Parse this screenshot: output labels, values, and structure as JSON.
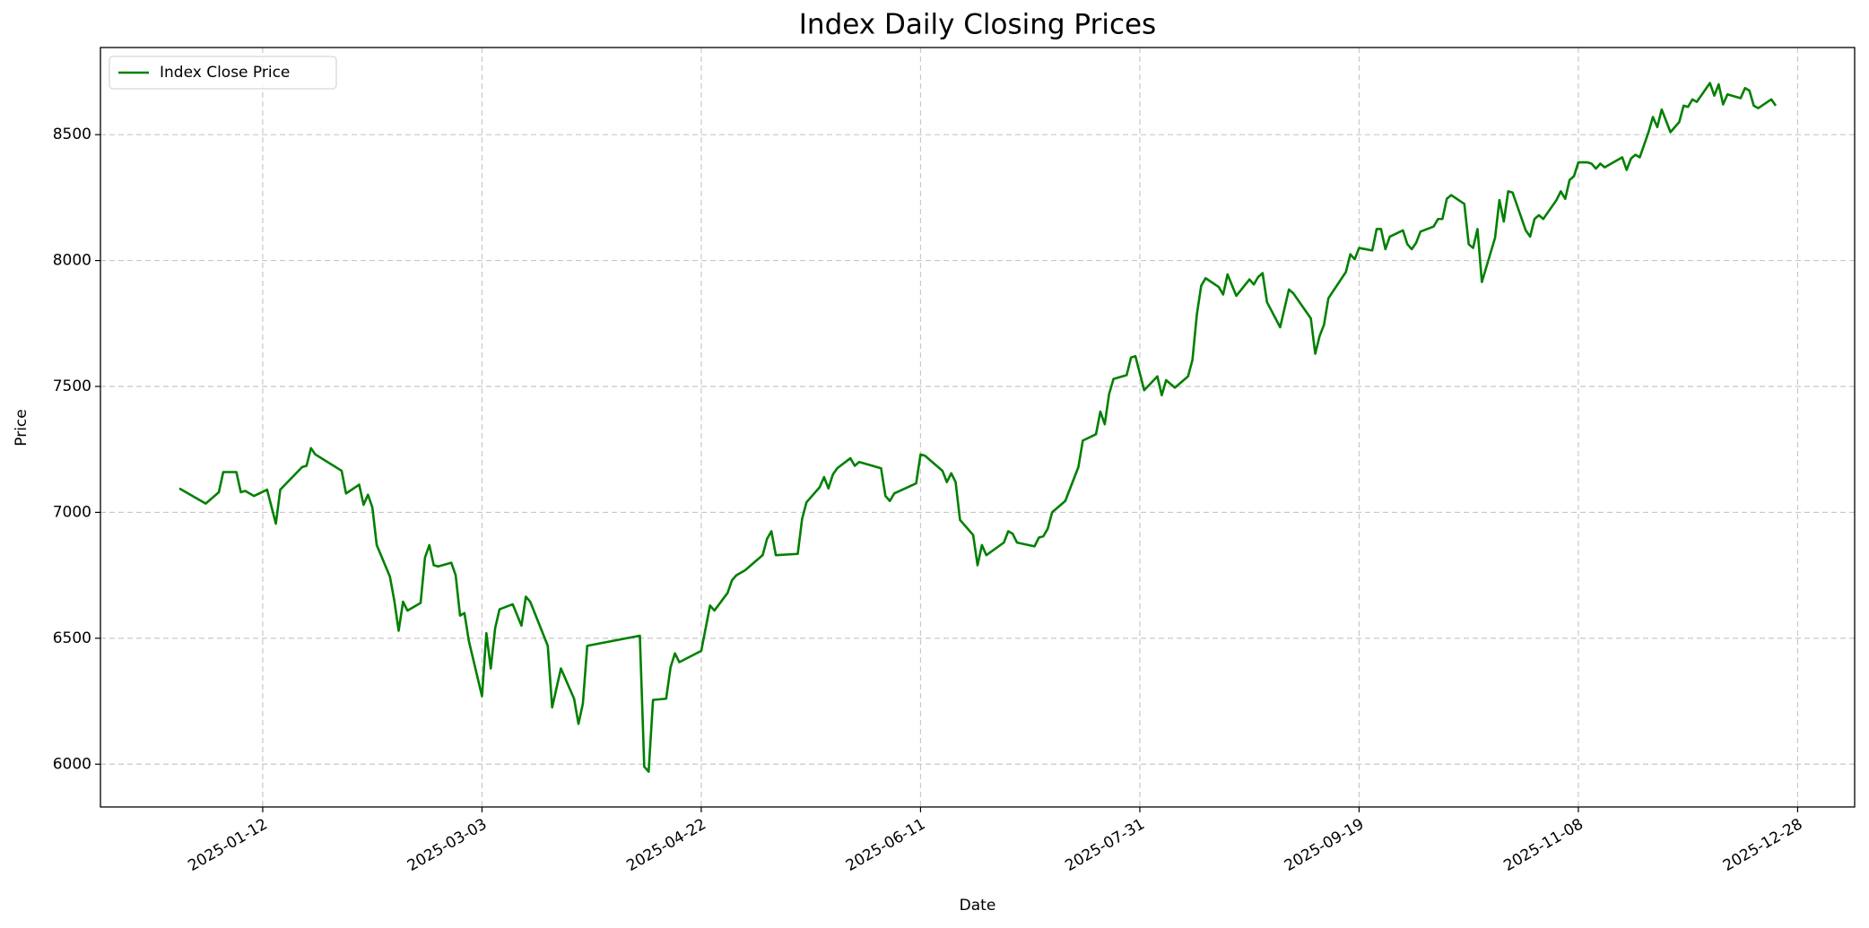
{
  "chart_data": {
    "type": "line",
    "title": "Index Daily Closing Prices",
    "x_label": "Date",
    "y_label": "Price",
    "x": [
      "2024-12-24",
      "2024-12-30",
      "2025-01-02",
      "2025-01-03",
      "2025-01-06",
      "2025-01-07",
      "2025-01-08",
      "2025-01-10",
      "2025-01-13",
      "2025-01-15",
      "2025-01-16",
      "2025-01-21",
      "2025-01-22",
      "2025-01-23",
      "2025-01-24",
      "2025-01-30",
      "2025-01-31",
      "2025-02-03",
      "2025-02-04",
      "2025-02-05",
      "2025-02-06",
      "2025-02-07",
      "2025-02-10",
      "2025-02-11",
      "2025-02-12",
      "2025-02-13",
      "2025-02-14",
      "2025-02-17",
      "2025-02-18",
      "2025-02-19",
      "2025-02-20",
      "2025-02-21",
      "2025-02-24",
      "2025-02-25",
      "2025-02-26",
      "2025-02-27",
      "2025-02-28",
      "2025-03-03",
      "2025-03-04",
      "2025-03-05",
      "2025-03-06",
      "2025-03-07",
      "2025-03-10",
      "2025-03-12",
      "2025-03-13",
      "2025-03-14",
      "2025-03-18",
      "2025-03-19",
      "2025-03-21",
      "2025-03-24",
      "2025-03-25",
      "2025-03-26",
      "2025-03-27",
      "2025-04-08",
      "2025-04-09",
      "2025-04-10",
      "2025-04-11",
      "2025-04-14",
      "2025-04-15",
      "2025-04-16",
      "2025-04-17",
      "2025-04-22",
      "2025-04-24",
      "2025-04-25",
      "2025-04-28",
      "2025-04-29",
      "2025-04-30",
      "2025-05-02",
      "2025-05-06",
      "2025-05-07",
      "2025-05-08",
      "2025-05-09",
      "2025-05-14",
      "2025-05-15",
      "2025-05-16",
      "2025-05-19",
      "2025-05-20",
      "2025-05-21",
      "2025-05-22",
      "2025-05-23",
      "2025-05-26",
      "2025-05-27",
      "2025-05-28",
      "2025-06-02",
      "2025-06-03",
      "2025-06-04",
      "2025-06-05",
      "2025-06-10",
      "2025-06-11",
      "2025-06-12",
      "2025-06-16",
      "2025-06-17",
      "2025-06-18",
      "2025-06-19",
      "2025-06-20",
      "2025-06-23",
      "2025-06-24",
      "2025-06-25",
      "2025-06-26",
      "2025-06-30",
      "2025-07-01",
      "2025-07-02",
      "2025-07-03",
      "2025-07-07",
      "2025-07-08",
      "2025-07-09",
      "2025-07-10",
      "2025-07-11",
      "2025-07-14",
      "2025-07-17",
      "2025-07-18",
      "2025-07-21",
      "2025-07-22",
      "2025-07-23",
      "2025-07-24",
      "2025-07-25",
      "2025-07-28",
      "2025-07-29",
      "2025-07-30",
      "2025-08-01",
      "2025-08-04",
      "2025-08-05",
      "2025-08-06",
      "2025-08-08",
      "2025-08-11",
      "2025-08-12",
      "2025-08-13",
      "2025-08-14",
      "2025-08-15",
      "2025-08-18",
      "2025-08-19",
      "2025-08-20",
      "2025-08-22",
      "2025-08-25",
      "2025-08-26",
      "2025-08-27",
      "2025-08-28",
      "2025-08-29",
      "2025-09-01",
      "2025-09-03",
      "2025-09-04",
      "2025-09-08",
      "2025-09-09",
      "2025-09-10",
      "2025-09-11",
      "2025-09-12",
      "2025-09-16",
      "2025-09-17",
      "2025-09-18",
      "2025-09-19",
      "2025-09-22",
      "2025-09-23",
      "2025-09-24",
      "2025-09-25",
      "2025-09-26",
      "2025-09-29",
      "2025-09-30",
      "2025-10-01",
      "2025-10-02",
      "2025-10-03",
      "2025-10-06",
      "2025-10-07",
      "2025-10-08",
      "2025-10-09",
      "2025-10-10",
      "2025-10-13",
      "2025-10-14",
      "2025-10-15",
      "2025-10-16",
      "2025-10-17",
      "2025-10-20",
      "2025-10-21",
      "2025-10-22",
      "2025-10-23",
      "2025-10-24",
      "2025-10-27",
      "2025-10-28",
      "2025-10-29",
      "2025-10-30",
      "2025-10-31",
      "2025-11-03",
      "2025-11-04",
      "2025-11-05",
      "2025-11-06",
      "2025-11-07",
      "2025-11-08",
      "2025-11-10",
      "2025-11-11",
      "2025-11-12",
      "2025-11-13",
      "2025-11-14",
      "2025-11-17",
      "2025-11-18",
      "2025-11-19",
      "2025-11-20",
      "2025-11-21",
      "2025-11-22",
      "2025-11-24",
      "2025-11-25",
      "2025-11-26",
      "2025-11-27",
      "2025-11-29",
      "2025-12-01",
      "2025-12-02",
      "2025-12-03",
      "2025-12-04",
      "2025-12-05",
      "2025-12-08",
      "2025-12-09",
      "2025-12-10",
      "2025-12-11",
      "2025-12-12",
      "2025-12-15",
      "2025-12-16",
      "2025-12-17",
      "2025-12-18",
      "2025-12-19",
      "2025-12-22",
      "2025-12-23"
    ],
    "series": [
      {
        "name": "Index Close Price",
        "color": "#008000",
        "values": [
          7095,
          7035,
          7080,
          7160,
          7160,
          7080,
          7085,
          7065,
          7090,
          6955,
          7090,
          7180,
          7185,
          7255,
          7230,
          7165,
          7075,
          7110,
          7030,
          7070,
          7020,
          6870,
          6745,
          6650,
          6530,
          6645,
          6610,
          6640,
          6820,
          6870,
          6790,
          6785,
          6800,
          6750,
          6590,
          6600,
          6490,
          6270,
          6520,
          6380,
          6540,
          6615,
          6635,
          6550,
          6665,
          6645,
          6470,
          6225,
          6380,
          6260,
          6160,
          6240,
          6470,
          6510,
          5990,
          5970,
          6255,
          6260,
          6385,
          6440,
          6405,
          6450,
          6630,
          6610,
          6680,
          6730,
          6750,
          6770,
          6830,
          6895,
          6925,
          6830,
          6835,
          6975,
          7040,
          7100,
          7140,
          7095,
          7150,
          7175,
          7215,
          7185,
          7200,
          7175,
          7065,
          7045,
          7075,
          7115,
          7230,
          7225,
          7165,
          7120,
          7155,
          7120,
          6970,
          6910,
          6790,
          6870,
          6830,
          6880,
          6925,
          6915,
          6880,
          6865,
          6900,
          6905,
          6935,
          7000,
          7045,
          7180,
          7285,
          7310,
          7400,
          7350,
          7470,
          7530,
          7545,
          7615,
          7620,
          7485,
          7540,
          7465,
          7525,
          7495,
          7540,
          7605,
          7785,
          7900,
          7930,
          7895,
          7865,
          7945,
          7860,
          7925,
          7905,
          7935,
          7950,
          7835,
          7735,
          7885,
          7870,
          7770,
          7630,
          7700,
          7745,
          7850,
          7955,
          8025,
          8005,
          8050,
          8040,
          8125,
          8125,
          8045,
          8095,
          8120,
          8065,
          8045,
          8070,
          8115,
          8135,
          8165,
          8165,
          8245,
          8260,
          8225,
          8065,
          8050,
          8125,
          7915,
          8090,
          8240,
          8155,
          8275,
          8270,
          8120,
          8095,
          8165,
          8180,
          8165,
          8240,
          8275,
          8245,
          8320,
          8335,
          8390,
          8390,
          8385,
          8365,
          8385,
          8370,
          8400,
          8410,
          8360,
          8405,
          8420,
          8410,
          8510,
          8570,
          8530,
          8600,
          8510,
          8550,
          8615,
          8610,
          8640,
          8630,
          8705,
          8655,
          8700,
          8620,
          8660,
          8645,
          8685,
          8675,
          8615,
          8605,
          8640,
          8615
        ]
      }
    ],
    "xlim": [
      "2024-12-06",
      "2026-01-10"
    ],
    "xticks": [
      "2025-01-12",
      "2025-03-03",
      "2025-04-22",
      "2025-06-11",
      "2025-07-31",
      "2025-09-19",
      "2025-11-08",
      "2025-12-28"
    ],
    "ylim": [
      5830,
      8846
    ],
    "yticks": [
      6000,
      6500,
      7000,
      7500,
      8000,
      8500
    ],
    "grid": true,
    "legend": "upper left"
  }
}
